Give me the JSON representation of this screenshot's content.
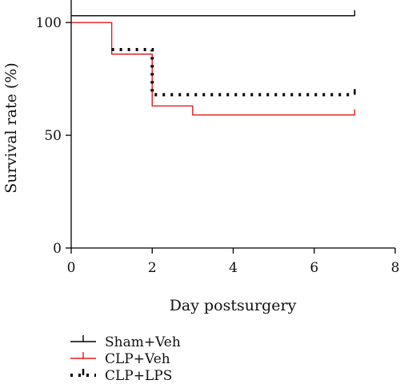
{
  "chart_data": {
    "type": "line",
    "title": "",
    "xlabel": "Day postsurgery",
    "ylabel": "Survival rate (%)",
    "xlim": [
      0,
      8
    ],
    "ylim": [
      0,
      110
    ],
    "xticks": [
      "0",
      "2",
      "4",
      "6",
      "8"
    ],
    "yticks": [
      "0",
      "50",
      "100"
    ],
    "grid": false,
    "legend_position": "bottom-left",
    "series": [
      {
        "name": "Sham+Veh",
        "color": "#000000",
        "style": "solid",
        "steps": [
          [
            0,
            103
          ],
          [
            7,
            103
          ]
        ]
      },
      {
        "name": "CLP+Veh",
        "color": "#e41a1c",
        "style": "solid",
        "steps": [
          [
            0,
            100
          ],
          [
            1,
            86
          ],
          [
            2,
            63
          ],
          [
            3,
            59
          ],
          [
            7,
            59
          ]
        ]
      },
      {
        "name": "CLP+LPS",
        "color": "#000000",
        "style": "dotted",
        "steps": [
          [
            1,
            88
          ],
          [
            2,
            68
          ],
          [
            7,
            68
          ]
        ]
      }
    ]
  }
}
